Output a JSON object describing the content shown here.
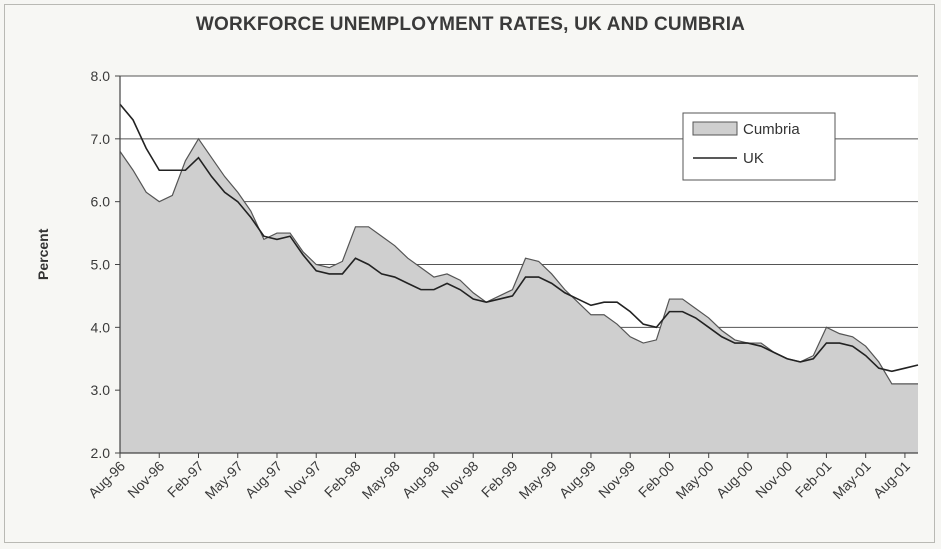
{
  "chart_data": {
    "type": "area",
    "title": "WORKFORCE UNEMPLOYMENT RATES, UK AND CUMBRIA",
    "ylabel": "Percent",
    "xlabel": "",
    "ylim": [
      2.0,
      8.0
    ],
    "yticks": [
      "2.0",
      "3.0",
      "4.0",
      "5.0",
      "6.0",
      "7.0",
      "8.0"
    ],
    "grid": "horizontal",
    "legend_position": "top-right",
    "x": [
      "Aug-96",
      "Sep-96",
      "Oct-96",
      "Nov-96",
      "Dec-96",
      "Jan-97",
      "Feb-97",
      "Mar-97",
      "Apr-97",
      "May-97",
      "Jun-97",
      "Jul-97",
      "Aug-97",
      "Sep-97",
      "Oct-97",
      "Nov-97",
      "Dec-97",
      "Jan-98",
      "Feb-98",
      "Mar-98",
      "Apr-98",
      "May-98",
      "Jun-98",
      "Jul-98",
      "Aug-98",
      "Sep-98",
      "Oct-98",
      "Nov-98",
      "Dec-98",
      "Jan-99",
      "Feb-99",
      "Mar-99",
      "Apr-99",
      "May-99",
      "Jun-99",
      "Jul-99",
      "Aug-99",
      "Sep-99",
      "Oct-99",
      "Nov-99",
      "Dec-99",
      "Jan-00",
      "Feb-00",
      "Mar-00",
      "Apr-00",
      "May-00",
      "Jun-00",
      "Jul-00",
      "Aug-00",
      "Sep-00",
      "Oct-00",
      "Nov-00",
      "Dec-00",
      "Jan-01",
      "Feb-01",
      "Mar-01",
      "Apr-01",
      "May-01",
      "Jun-01",
      "Jul-01",
      "Aug-01",
      "Sep-01"
    ],
    "x_tick_labels": [
      "Aug-96",
      "Nov-96",
      "Feb-97",
      "May-97",
      "Aug-97",
      "Nov-97",
      "Feb-98",
      "May-98",
      "Aug-98",
      "Nov-98",
      "Feb-99",
      "May-99",
      "Aug-99",
      "Nov-99",
      "Feb-00",
      "May-00",
      "Aug-00",
      "Nov-00",
      "Feb-01",
      "May-01",
      "Aug-01"
    ],
    "series": [
      {
        "name": "Cumbria",
        "style": "shaded-area",
        "color": "#cfcfcf",
        "values": [
          6.8,
          6.5,
          6.15,
          6.0,
          6.1,
          6.65,
          7.0,
          6.7,
          6.4,
          6.15,
          5.85,
          5.4,
          5.5,
          5.5,
          5.2,
          5.0,
          4.95,
          5.05,
          5.6,
          5.6,
          5.45,
          5.3,
          5.1,
          4.95,
          4.8,
          4.85,
          4.75,
          4.55,
          4.4,
          4.5,
          4.6,
          5.1,
          5.05,
          4.85,
          4.6,
          4.4,
          4.2,
          4.2,
          4.05,
          3.85,
          3.75,
          3.8,
          4.45,
          4.45,
          4.3,
          4.15,
          3.95,
          3.8,
          3.75,
          3.75,
          3.6,
          3.5,
          3.45,
          3.55,
          4.0,
          3.9,
          3.85,
          3.7,
          3.45,
          3.1,
          3.1,
          3.1
        ]
      },
      {
        "name": "UK",
        "style": "line",
        "color": "#222222",
        "values": [
          7.55,
          7.3,
          6.85,
          6.5,
          6.5,
          6.5,
          6.7,
          6.4,
          6.15,
          6.0,
          5.75,
          5.45,
          5.4,
          5.45,
          5.15,
          4.9,
          4.85,
          4.85,
          5.1,
          5.0,
          4.85,
          4.8,
          4.7,
          4.6,
          4.6,
          4.7,
          4.6,
          4.45,
          4.4,
          4.45,
          4.5,
          4.8,
          4.8,
          4.7,
          4.55,
          4.45,
          4.35,
          4.4,
          4.4,
          4.25,
          4.05,
          4.0,
          4.25,
          4.25,
          4.15,
          4.0,
          3.85,
          3.75,
          3.75,
          3.7,
          3.6,
          3.5,
          3.45,
          3.5,
          3.75,
          3.75,
          3.7,
          3.55,
          3.35,
          3.3,
          3.35,
          3.4
        ]
      }
    ]
  }
}
